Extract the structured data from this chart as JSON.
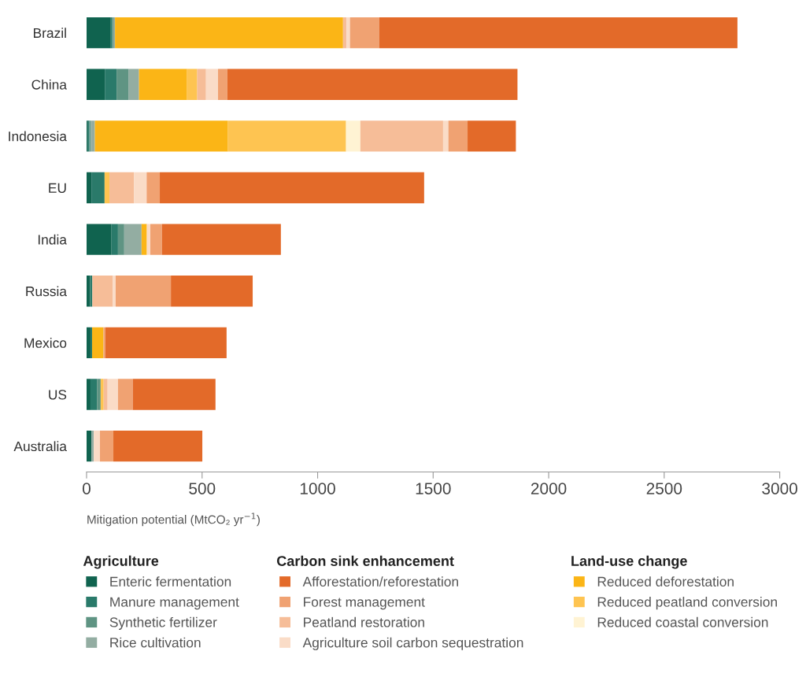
{
  "chart_data": {
    "type": "bar",
    "orientation": "horizontal",
    "stacked": true,
    "categories": [
      "Brazil",
      "China",
      "Indonesia",
      "EU",
      "India",
      "Russia",
      "Mexico",
      "US",
      "Australia"
    ],
    "series": [
      {
        "name": "Enteric fermentation",
        "color": "#10634f",
        "values": [
          105,
          79,
          6,
          21,
          108,
          15,
          17,
          17,
          21
        ]
      },
      {
        "name": "Manure management",
        "color": "#2a7a6a",
        "values": [
          6,
          51,
          6,
          57,
          28,
          10,
          7,
          28,
          0
        ]
      },
      {
        "name": "Synthetic fertilizer",
        "color": "#5f9483",
        "values": [
          5,
          51,
          7,
          0,
          27,
          0,
          0,
          16,
          0
        ]
      },
      {
        "name": "Rice cultivation",
        "color": "#93ada2",
        "values": [
          7,
          46,
          17,
          0,
          75,
          0,
          0,
          0,
          10
        ]
      },
      {
        "name": "Reduced deforestation",
        "color": "#fbb516",
        "values": [
          987,
          208,
          576,
          0,
          23,
          0,
          49,
          0,
          0
        ]
      },
      {
        "name": "Reduced peatland conversion",
        "color": "#fec451",
        "values": [
          0,
          44,
          511,
          21,
          0,
          0,
          0,
          13,
          0
        ]
      },
      {
        "name": "Reduced coastal conversion",
        "color": "#fff3d3",
        "values": [
          0,
          0,
          62,
          0,
          0,
          0,
          0,
          0,
          0
        ]
      },
      {
        "name": "Peatland restoration",
        "color": "#f6bd98",
        "values": [
          15,
          38,
          358,
          106,
          0,
          89,
          0,
          17,
          0
        ]
      },
      {
        "name": "Agriculture soil carbon sequestration",
        "color": "#fadcc7",
        "values": [
          15,
          52,
          23,
          55,
          15,
          12,
          0,
          45,
          27
        ]
      },
      {
        "name": "Forest management",
        "color": "#f0a272",
        "values": [
          126,
          40,
          83,
          57,
          50,
          239,
          8,
          64,
          58
        ]
      },
      {
        "name": "Afforestation/reforestation",
        "color": "#e36a29",
        "values": [
          1551,
          1256,
          209,
          1144,
          515,
          354,
          525,
          358,
          385
        ]
      }
    ],
    "xlim": [
      0,
      3000
    ],
    "xticks": [
      0,
      500,
      1000,
      1500,
      2000,
      2500,
      3000
    ],
    "xlabel": "Mitigation potential (MtCO₂ yr$^{−1}$)",
    "legend": "bottom",
    "annotations": [
      "Agriculture",
      "Carbon sink enhancement",
      "Land-use change"
    ],
    "grid": false
  }
}
